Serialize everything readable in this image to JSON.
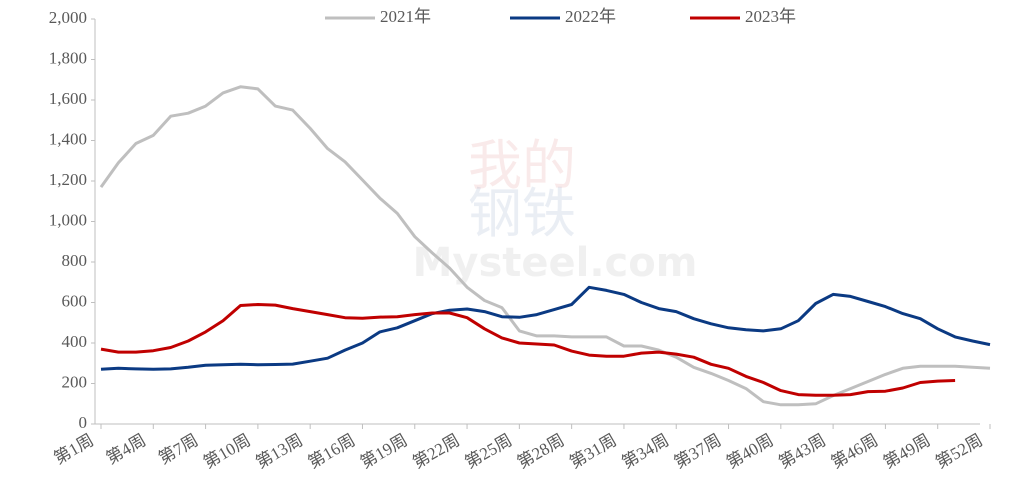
{
  "chart_data": {
    "type": "line",
    "categories": [
      "第1周",
      null,
      null,
      "第4周",
      null,
      null,
      "第7周",
      null,
      null,
      "第10周",
      null,
      null,
      "第13周",
      null,
      null,
      "第16周",
      null,
      null,
      "第19周",
      null,
      null,
      "第22周",
      null,
      null,
      "第25周",
      null,
      null,
      "第28周",
      null,
      null,
      "第31周",
      null,
      null,
      "第34周",
      null,
      null,
      "第37周",
      null,
      null,
      "第40周",
      null,
      null,
      "第43周",
      null,
      null,
      "第46周",
      null,
      null,
      "第49周",
      null,
      null,
      "第52周"
    ],
    "series": [
      {
        "name": "2021年",
        "color": "#bfbfbf",
        "values": [
          1170,
          1290,
          1385,
          1425,
          1520,
          1535,
          1570,
          1635,
          1665,
          1655,
          1570,
          1550,
          1460,
          1360,
          1295,
          1205,
          1115,
          1040,
          925,
          845,
          770,
          675,
          610,
          575,
          460,
          435,
          435,
          430,
          430,
          430,
          385,
          385,
          365,
          330,
          280,
          250,
          215,
          175,
          110,
          95,
          95,
          100,
          140,
          175,
          210,
          245,
          275,
          285,
          285,
          285,
          280,
          275
        ]
      },
      {
        "name": "2022年",
        "color": "#0b3a83",
        "values": [
          270,
          275,
          272,
          270,
          272,
          280,
          290,
          293,
          295,
          293,
          294,
          296,
          310,
          325,
          365,
          400,
          455,
          475,
          510,
          545,
          562,
          568,
          555,
          530,
          527,
          540,
          565,
          590,
          675,
          660,
          640,
          600,
          570,
          555,
          520,
          495,
          475,
          465,
          460,
          470,
          510,
          595,
          640,
          630,
          605,
          580,
          545,
          520,
          470,
          430,
          410,
          392
        ]
      },
      {
        "name": "2023年",
        "color": "#c00000",
        "values": [
          370,
          355,
          355,
          362,
          378,
          410,
          455,
          510,
          585,
          590,
          587,
          570,
          555,
          540,
          525,
          522,
          528,
          530,
          540,
          548,
          548,
          525,
          470,
          425,
          400,
          395,
          390,
          360,
          340,
          335,
          335,
          350,
          355,
          345,
          330,
          295,
          275,
          235,
          205,
          165,
          145,
          142,
          142,
          145,
          160,
          162,
          178,
          205,
          212,
          215,
          null,
          null
        ]
      }
    ],
    "ylim": [
      0,
      2000
    ],
    "yticks": [
      0,
      200,
      400,
      600,
      800,
      {
        "value": 1000,
        "label": "1,000"
      },
      {
        "value": 1200,
        "label": "1,200"
      },
      {
        "value": 1400,
        "label": "1,400"
      },
      {
        "value": 1600,
        "label": "1,600"
      },
      {
        "value": 1800,
        "label": "1,800"
      },
      {
        "value": 2000,
        "label": "2,000"
      }
    ],
    "legend": "top",
    "watermark": [
      "我的",
      "钢铁",
      "Mysteel.com"
    ]
  }
}
